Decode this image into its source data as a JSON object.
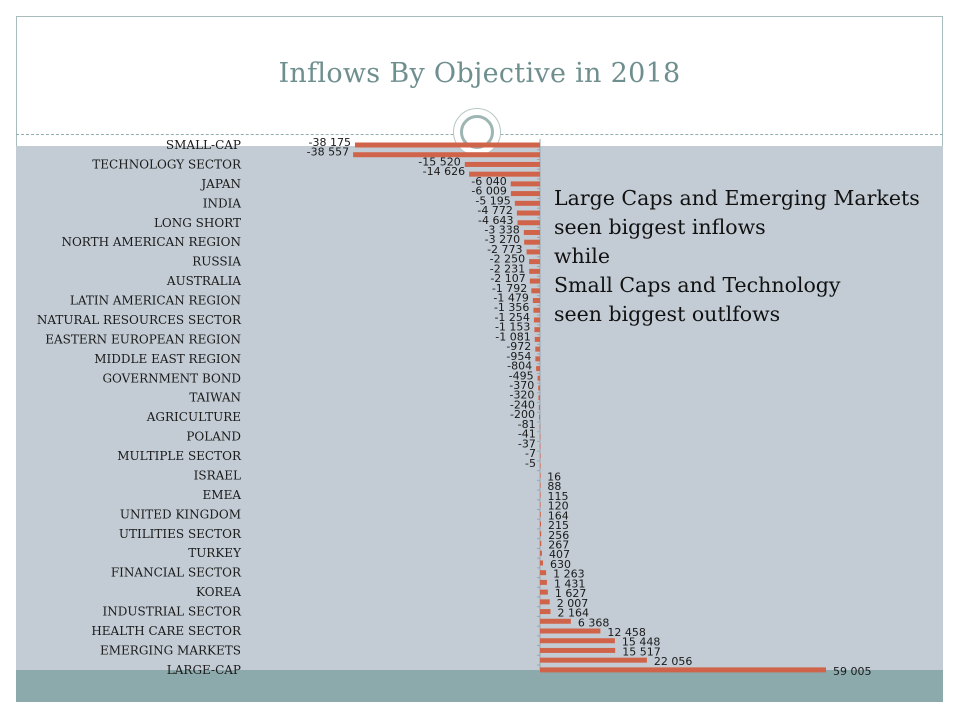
{
  "slide": {
    "title": "Inflows By Objective in 2018",
    "annotation_lines": [
      "Large Caps and Emerging Markets",
      "seen biggest inflows",
      "while",
      "Small Caps and Technology",
      "seen biggest outlfows"
    ]
  },
  "colors": {
    "bar": "#d0644a",
    "panel": "#c3ccd4",
    "title": "#6f8f8f",
    "footer": "#8caaab"
  },
  "chart_data": {
    "type": "bar",
    "orientation": "horizontal",
    "title": "Inflows By Objective in 2018",
    "xlim": [
      -40000,
      60000
    ],
    "categories": [
      "SMALL-CAP",
      "",
      "TECHNOLOGY SECTOR",
      "",
      "JAPAN",
      "",
      "INDIA",
      "",
      "LONG SHORT",
      "",
      "NORTH AMERICAN REGION",
      "",
      "RUSSIA",
      "",
      "AUSTRALIA",
      "",
      "LATIN AMERICAN REGION",
      "",
      "NATURAL RESOURCES SECTOR",
      "",
      "EASTERN EUROPEAN REGION",
      "",
      "MIDDLE EAST REGION",
      "",
      "GOVERNMENT BOND",
      "",
      "TAIWAN",
      "",
      "AGRICULTURE",
      "",
      "POLAND",
      "",
      "MULTIPLE SECTOR",
      "",
      "ISRAEL",
      "",
      "EMEA",
      "",
      "UNITED KINGDOM",
      "",
      "UTILITIES SECTOR",
      "",
      "TURKEY",
      "",
      "FINANCIAL SECTOR",
      "",
      "KOREA",
      "",
      "INDUSTRIAL SECTOR",
      "",
      "HEALTH CARE SECTOR",
      "",
      "EMERGING MARKETS",
      "",
      "LARGE-CAP"
    ],
    "values": [
      -38175,
      -38557,
      -15520,
      -14626,
      -6040,
      -6009,
      -5195,
      -4772,
      -4643,
      -3338,
      -3270,
      -2773,
      -2250,
      -2231,
      -2107,
      -1792,
      -1479,
      -1356,
      -1254,
      -1153,
      -1081,
      -972,
      -954,
      -804,
      -495,
      -370,
      -320,
      -240,
      -200,
      -81,
      -41,
      -37,
      -7,
      -5,
      16,
      88,
      115,
      120,
      164,
      215,
      256,
      267,
      407,
      630,
      1263,
      1431,
      1627,
      2007,
      2164,
      6368,
      12458,
      15448,
      15517,
      22056,
      59005
    ],
    "value_labels": [
      "-38 175",
      "-38 557",
      "-15 520",
      "-14 626",
      "-6 040",
      "-6 009",
      "-5 195",
      "-4 772",
      "-4 643",
      "-3 338",
      "-3 270",
      "-2 773",
      "-2 250",
      "-2 231",
      "-2 107",
      "-1 792",
      "-1 479",
      "-1 356",
      "-1 254",
      "-1 153",
      "-1 081",
      "-972",
      "-954",
      "-804",
      "-495",
      "-370",
      "-320",
      "-240",
      "-200",
      "-81",
      "-41",
      "-37",
      "-7",
      "-5",
      "16",
      "88",
      "115",
      "120",
      "164",
      "215",
      "256",
      "267",
      "407",
      "630",
      "1 263",
      "1 431",
      "1 627",
      "2 007",
      "2 164",
      "6 368",
      "12 458",
      "15 448",
      "15 517",
      "22 056",
      "59 005"
    ]
  }
}
